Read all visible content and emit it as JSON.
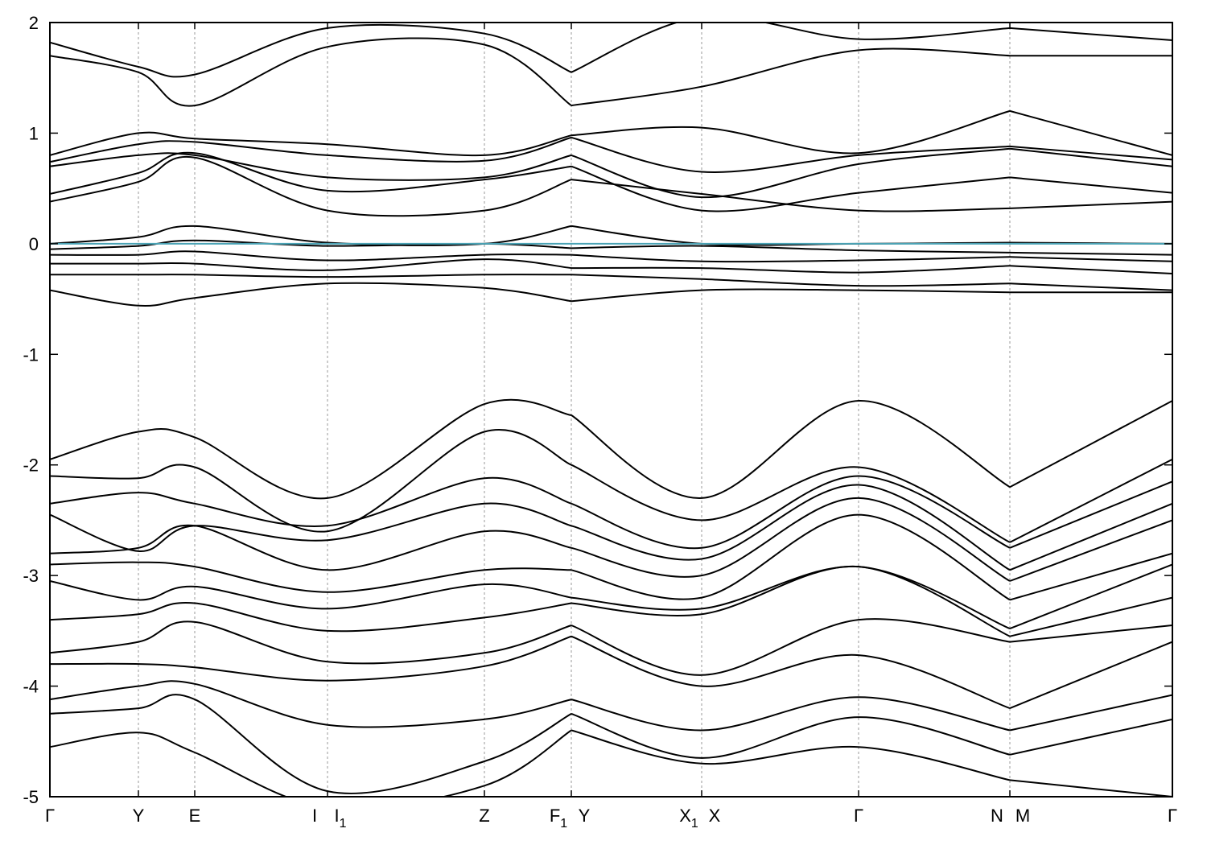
{
  "chart_data": {
    "type": "line",
    "title": "",
    "xlabel": "",
    "ylabel": "",
    "ylim": [
      -5,
      2
    ],
    "yticks": [
      -5,
      -4,
      -3,
      -2,
      -1,
      0,
      1,
      2
    ],
    "ytick_labels": [
      "-5",
      "-4",
      "-3",
      "-2",
      "-1",
      "0",
      "1",
      "2"
    ],
    "xlim": [
      0,
      1395
    ],
    "grid": false,
    "fermi_level": 0,
    "colors": {
      "bands": "#000000",
      "fermi": "#4aa3b5",
      "kpath_lines": "#9a9a9a"
    },
    "high_symmetry_points": [
      {
        "x": 0,
        "label": "Γ",
        "sub": ""
      },
      {
        "x": 110,
        "label": "Y",
        "sub": ""
      },
      {
        "x": 180,
        "label": "E",
        "sub": ""
      },
      {
        "x": 345,
        "label": "I",
        "sub": ""
      },
      {
        "x": 345,
        "label": "I",
        "sub": "1"
      },
      {
        "x": 540,
        "label": "Z",
        "sub": ""
      },
      {
        "x": 648,
        "label": "F",
        "sub": "1"
      },
      {
        "x": 648,
        "label": "Y",
        "sub": ""
      },
      {
        "x": 810,
        "label": "X",
        "sub": "1"
      },
      {
        "x": 810,
        "label": "X",
        "sub": ""
      },
      {
        "x": 1005,
        "label": "Γ",
        "sub": ""
      },
      {
        "x": 1193,
        "label": "N",
        "sub": ""
      },
      {
        "x": 1193,
        "label": "M",
        "sub": ""
      },
      {
        "x": 1395,
        "label": "Γ",
        "sub": ""
      }
    ],
    "segments": [
      {
        "from": "Γ",
        "to": "Y",
        "x0": 0,
        "x1": 110
      },
      {
        "from": "Y",
        "to": "E",
        "x0": 110,
        "x1": 180
      },
      {
        "from": "E",
        "to": "I",
        "x0": 180,
        "x1": 345
      },
      {
        "from": "I1",
        "to": "Z",
        "x0": 345,
        "x1": 540
      },
      {
        "from": "Z",
        "to": "F1",
        "x0": 540,
        "x1": 648
      },
      {
        "from": "Y",
        "to": "X1",
        "x0": 648,
        "x1": 810
      },
      {
        "from": "X",
        "to": "Γ",
        "x0": 810,
        "x1": 1005
      },
      {
        "from": "Γ",
        "to": "N",
        "x0": 1005,
        "x1": 1193
      },
      {
        "from": "M",
        "to": "Γ",
        "x0": 1193,
        "x1": 1395
      }
    ],
    "series": [
      {
        "x": [
          0,
          110,
          180,
          345,
          540,
          648,
          648,
          810,
          1005,
          1193,
          1193,
          1395
        ],
        "y": [
          -4.55,
          -4.42,
          -4.6,
          -5.1,
          -4.9,
          -4.4,
          -4.4,
          -4.7,
          -4.55,
          -4.85,
          -4.85,
          -5.0
        ]
      },
      {
        "x": [
          0,
          110,
          180,
          345,
          540,
          648,
          648,
          810,
          1005,
          1193,
          1193,
          1395
        ],
        "y": [
          -4.25,
          -4.2,
          -4.12,
          -4.95,
          -4.68,
          -4.25,
          -4.25,
          -4.65,
          -4.28,
          -4.62,
          -4.62,
          -4.3
        ]
      },
      {
        "x": [
          0,
          110,
          180,
          345,
          540,
          648,
          648,
          810,
          1005,
          1193,
          1193,
          1395
        ],
        "y": [
          -4.12,
          -4.0,
          -3.98,
          -4.35,
          -4.3,
          -4.12,
          -4.12,
          -4.4,
          -4.1,
          -4.4,
          -4.4,
          -4.08
        ]
      },
      {
        "x": [
          0,
          110,
          180,
          345,
          540,
          648,
          648,
          810,
          1005,
          1193,
          1193,
          1395
        ],
        "y": [
          -3.8,
          -3.8,
          -3.83,
          -3.95,
          -3.82,
          -3.55,
          -3.55,
          -4.0,
          -3.72,
          -4.2,
          -4.2,
          -3.6
        ]
      },
      {
        "x": [
          0,
          110,
          180,
          345,
          540,
          648,
          648,
          810,
          1005,
          1193,
          1193,
          1395
        ],
        "y": [
          -3.7,
          -3.6,
          -3.42,
          -3.78,
          -3.7,
          -3.45,
          -3.45,
          -3.9,
          -3.4,
          -3.6,
          -3.6,
          -3.45
        ]
      },
      {
        "x": [
          0,
          110,
          180,
          345,
          540,
          648,
          648,
          810,
          1005,
          1193,
          1193,
          1395
        ],
        "y": [
          -3.4,
          -3.35,
          -3.25,
          -3.5,
          -3.38,
          -3.25,
          -3.25,
          -3.35,
          -2.92,
          -3.55,
          -3.55,
          -3.2
        ]
      },
      {
        "x": [
          0,
          110,
          180,
          345,
          540,
          648,
          648,
          810,
          1005,
          1193,
          1193,
          1395
        ],
        "y": [
          -3.05,
          -3.22,
          -3.1,
          -3.3,
          -3.08,
          -3.2,
          -3.2,
          -3.3,
          -2.92,
          -3.48,
          -3.48,
          -2.9
        ]
      },
      {
        "x": [
          0,
          110,
          180,
          345,
          540,
          648,
          648,
          810,
          1005,
          1193,
          1193,
          1395
        ],
        "y": [
          -2.9,
          -2.88,
          -2.92,
          -3.15,
          -2.95,
          -2.95,
          -2.95,
          -3.2,
          -2.45,
          -3.22,
          -3.22,
          -2.8
        ]
      },
      {
        "x": [
          0,
          110,
          180,
          345,
          540,
          648,
          648,
          810,
          1005,
          1193,
          1193,
          1395
        ],
        "y": [
          -2.8,
          -2.75,
          -2.55,
          -2.95,
          -2.6,
          -2.75,
          -2.75,
          -3.0,
          -2.3,
          -3.05,
          -3.05,
          -2.5
        ]
      },
      {
        "x": [
          0,
          110,
          180,
          345,
          540,
          648,
          648,
          810,
          1005,
          1193,
          1193,
          1395
        ],
        "y": [
          -2.45,
          -2.78,
          -2.55,
          -2.68,
          -2.35,
          -2.55,
          -2.55,
          -2.85,
          -2.18,
          -2.95,
          -2.95,
          -2.35
        ]
      },
      {
        "x": [
          0,
          110,
          180,
          345,
          540,
          648,
          648,
          810,
          1005,
          1193,
          1193,
          1395
        ],
        "y": [
          -2.35,
          -2.25,
          -2.35,
          -2.55,
          -2.12,
          -2.35,
          -2.35,
          -2.75,
          -2.1,
          -2.75,
          -2.75,
          -2.15
        ]
      },
      {
        "x": [
          0,
          110,
          180,
          345,
          540,
          648,
          648,
          810,
          1005,
          1193,
          1193,
          1395
        ],
        "y": [
          -2.1,
          -2.12,
          -2.02,
          -2.6,
          -1.7,
          -2.0,
          -2.0,
          -2.5,
          -2.02,
          -2.7,
          -2.7,
          -1.95
        ]
      },
      {
        "x": [
          0,
          110,
          180,
          345,
          540,
          648,
          648,
          810,
          1005,
          1193,
          1193,
          1395
        ],
        "y": [
          -1.95,
          -1.7,
          -1.75,
          -2.3,
          -1.45,
          -1.55,
          -1.55,
          -2.3,
          -1.42,
          -2.2,
          -2.2,
          -1.42
        ]
      },
      {
        "x": [
          0,
          110,
          180,
          345,
          540,
          648,
          648,
          810,
          1005,
          1193,
          1193,
          1395
        ],
        "y": [
          -0.42,
          -0.56,
          -0.49,
          -0.36,
          -0.4,
          -0.52,
          -0.52,
          -0.42,
          -0.42,
          -0.44,
          -0.44,
          -0.44
        ]
      },
      {
        "x": [
          0,
          110,
          180,
          345,
          540,
          648,
          648,
          810,
          1005,
          1193,
          1193,
          1395
        ],
        "y": [
          -0.28,
          -0.28,
          -0.28,
          -0.3,
          -0.28,
          -0.28,
          -0.28,
          -0.32,
          -0.38,
          -0.36,
          -0.36,
          -0.42
        ]
      },
      {
        "x": [
          0,
          110,
          180,
          345,
          540,
          648,
          648,
          810,
          1005,
          1193,
          1193,
          1395
        ],
        "y": [
          -0.18,
          -0.18,
          -0.18,
          -0.24,
          -0.14,
          -0.22,
          -0.22,
          -0.22,
          -0.26,
          -0.2,
          -0.2,
          -0.27
        ]
      },
      {
        "x": [
          0,
          110,
          180,
          345,
          540,
          648,
          648,
          810,
          1005,
          1193,
          1193,
          1395
        ],
        "y": [
          -0.1,
          -0.1,
          -0.07,
          -0.15,
          -0.1,
          -0.1,
          -0.1,
          -0.16,
          -0.15,
          -0.12,
          -0.12,
          -0.16
        ]
      },
      {
        "x": [
          0,
          110,
          180,
          345,
          540,
          648,
          648,
          810,
          1005,
          1193,
          1193,
          1395
        ],
        "y": [
          -0.05,
          -0.02,
          0.03,
          -0.02,
          0.0,
          -0.04,
          -0.04,
          -0.02,
          -0.06,
          -0.08,
          -0.08,
          -0.1
        ]
      },
      {
        "x": [
          0,
          110,
          180,
          345,
          540,
          648,
          648,
          810,
          1005,
          1193,
          1193,
          1395
        ],
        "y": [
          0.0,
          0.06,
          0.16,
          0.01,
          0.0,
          0.16,
          0.16,
          0.0,
          0.0,
          0.01,
          0.01,
          0.0
        ]
      },
      {
        "x": [
          0,
          110,
          180,
          345,
          540,
          648,
          648,
          810,
          1005,
          1193,
          1193,
          1395
        ],
        "y": [
          0.38,
          0.56,
          0.78,
          0.3,
          0.3,
          0.58,
          0.58,
          0.45,
          0.3,
          0.32,
          0.32,
          0.38
        ]
      },
      {
        "x": [
          0,
          110,
          180,
          345,
          540,
          648,
          648,
          810,
          1005,
          1193,
          1193,
          1395
        ],
        "y": [
          0.45,
          0.64,
          0.82,
          0.48,
          0.58,
          0.7,
          0.7,
          0.3,
          0.46,
          0.6,
          0.6,
          0.46
        ]
      },
      {
        "x": [
          0,
          110,
          180,
          345,
          540,
          648,
          648,
          810,
          1005,
          1193,
          1193,
          1395
        ],
        "y": [
          0.7,
          0.8,
          0.8,
          0.6,
          0.6,
          0.8,
          0.8,
          0.42,
          0.72,
          0.86,
          0.86,
          0.7
        ]
      },
      {
        "x": [
          0,
          110,
          180,
          345,
          540,
          648,
          648,
          810,
          1005,
          1193,
          1193,
          1395
        ],
        "y": [
          0.74,
          0.9,
          0.92,
          0.8,
          0.75,
          0.96,
          0.96,
          0.65,
          0.8,
          0.88,
          0.88,
          0.76
        ]
      },
      {
        "x": [
          0,
          110,
          180,
          345,
          540,
          648,
          648,
          810,
          1005,
          1193,
          1193,
          1395
        ],
        "y": [
          0.8,
          1.0,
          0.95,
          0.9,
          0.8,
          0.98,
          0.98,
          1.05,
          0.82,
          1.2,
          1.2,
          0.8
        ]
      },
      {
        "x": [
          0,
          110,
          180,
          345,
          540,
          648,
          648,
          810,
          1005,
          1193,
          1193,
          1395
        ],
        "y": [
          1.7,
          1.55,
          1.25,
          1.78,
          1.8,
          1.25,
          1.25,
          1.42,
          1.75,
          1.7,
          1.7,
          1.7
        ]
      },
      {
        "x": [
          0,
          110,
          180,
          345,
          540,
          648,
          648,
          810,
          1005,
          1193,
          1193,
          1395
        ],
        "y": [
          1.82,
          1.6,
          1.53,
          1.95,
          1.9,
          1.55,
          1.55,
          2.05,
          1.85,
          1.95,
          1.95,
          1.84
        ]
      }
    ]
  }
}
